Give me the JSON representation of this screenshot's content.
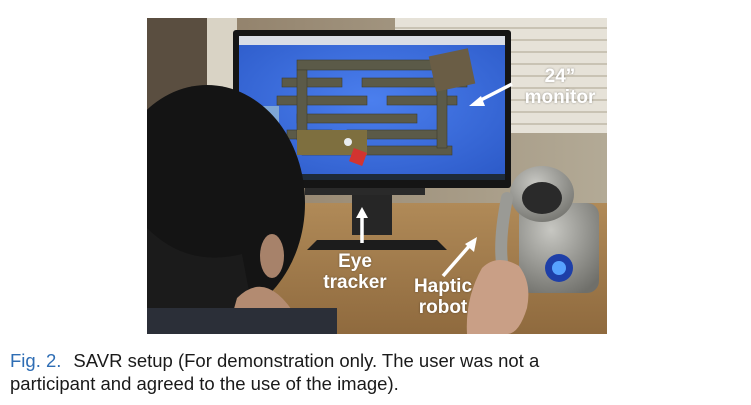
{
  "figure": {
    "labels": {
      "monitor": [
        "24”",
        "monitor"
      ],
      "eye_tracker": [
        "Eye",
        "tracker"
      ],
      "haptic_robot": [
        "Haptic",
        "robot"
      ]
    }
  },
  "caption": {
    "label": "Fig. 2.",
    "line1": "SAVR setup (For demonstration only. The user was not a",
    "line2": "participant and agreed to the use of the image)."
  },
  "colors": {
    "caption_label": "#2e6db4",
    "screen_blue": "#3b6fe0",
    "label_text": "#ffffff"
  }
}
